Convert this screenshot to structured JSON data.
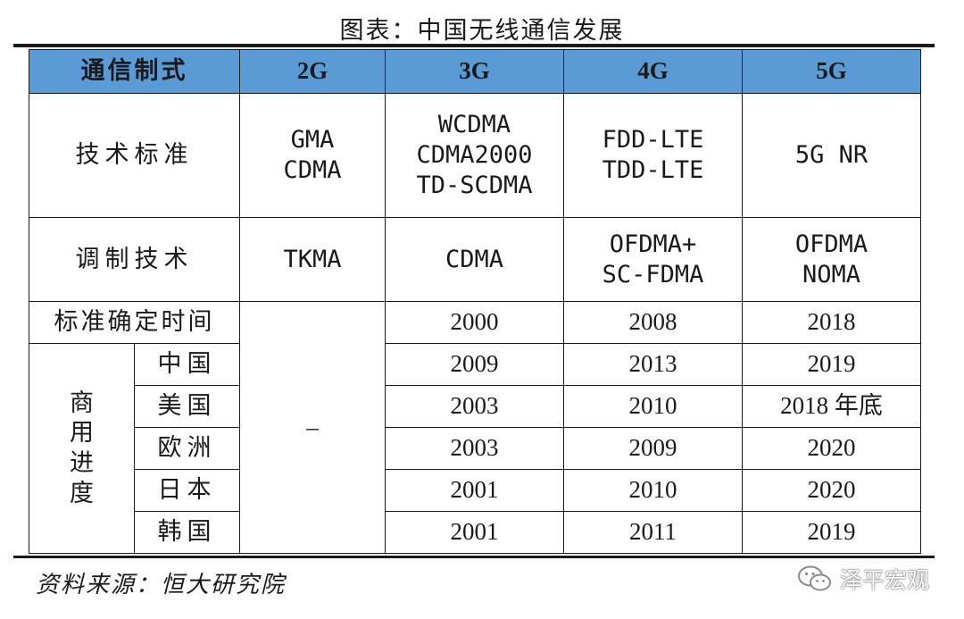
{
  "title": "图表：中国无线通信发展",
  "table": {
    "header": {
      "label": "通信制式",
      "generations": [
        "2G",
        "3G",
        "4G",
        "5G"
      ]
    },
    "standards": {
      "label": "技术标准",
      "g2": [
        "GMA",
        "CDMA"
      ],
      "g3": [
        "WCDMA",
        "CDMA2000",
        "TD-SCDMA"
      ],
      "g4": [
        "FDD-LTE",
        "TDD-LTE"
      ],
      "g5": [
        "5G NR"
      ]
    },
    "modulation": {
      "label": "调制技术",
      "g2": [
        "TKMA"
      ],
      "g3": [
        "CDMA"
      ],
      "g4": [
        "OFDMA+",
        "SC-FDMA"
      ],
      "g5": [
        "OFDMA",
        "NOMA"
      ]
    },
    "standard_date": {
      "label": "标准确定时间",
      "g3": "2000",
      "g4": "2008",
      "g5": "2018"
    },
    "dash": "–",
    "commercial": {
      "label_chars": [
        "商",
        "用",
        "进",
        "度"
      ],
      "rows": [
        {
          "region": "中国",
          "g3": "2009",
          "g4": "2013",
          "g5": "2019"
        },
        {
          "region": "美国",
          "g3": "2003",
          "g4": "2010",
          "g5": "2018 年底"
        },
        {
          "region": "欧洲",
          "g3": "2003",
          "g4": "2009",
          "g5": "2020"
        },
        {
          "region": "日本",
          "g3": "2001",
          "g4": "2010",
          "g5": "2020"
        },
        {
          "region": "韩国",
          "g3": "2001",
          "g4": "2011",
          "g5": "2019"
        }
      ]
    }
  },
  "source": "资料来源：恒大研究院",
  "watermark": {
    "icon": "wechat-icon",
    "text": "泽平宏观"
  },
  "colors": {
    "header_bg": "#5b9bd5"
  }
}
